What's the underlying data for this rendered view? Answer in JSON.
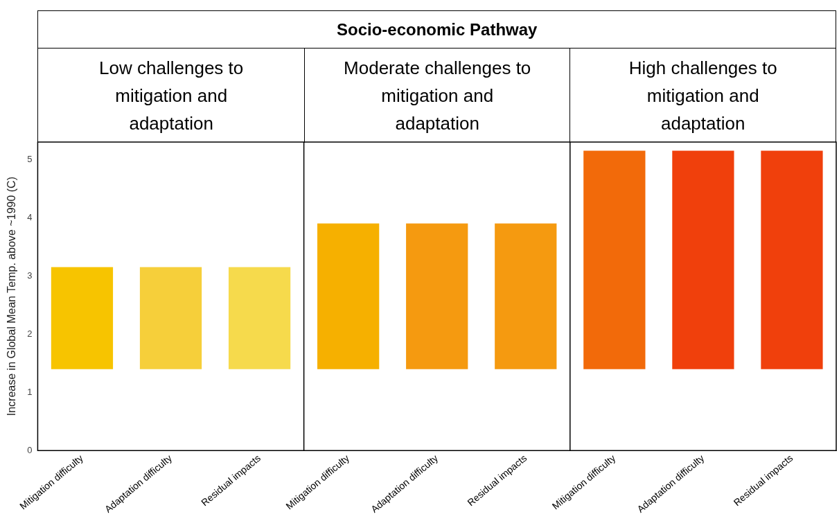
{
  "chart_data": {
    "type": "bar",
    "title": "Socio-economic Pathway",
    "annotations": [
      "Low challenges to mitigation and adaptation",
      "Moderate challenges to mitigation and adaptation",
      "High challenges to mitigation and adaptation"
    ],
    "ylabel": "Increase in Global Mean Temp. above ~1990 (C)",
    "categories": [
      "Mitigation difficulty",
      "Adaptation difficulty",
      "Residual impacts",
      "Mitigation difficulty",
      "Adaptation difficulty",
      "Residual impacts",
      "Mitigation difficulty",
      "Adaptation difficulty",
      "Residual impacts"
    ],
    "base": [
      1.4,
      1.4,
      1.4,
      1.4,
      1.4,
      1.4,
      1.4,
      1.4,
      1.4
    ],
    "values": [
      1.75,
      1.75,
      1.75,
      2.5,
      2.5,
      2.5,
      3.75,
      3.75,
      3.75
    ],
    "colors": [
      "#f7c400",
      "#f6cf3a",
      "#f6da4c",
      "#f6b000",
      "#f59a10",
      "#f59a10",
      "#f26a0a",
      "#f0400c",
      "#f0400c"
    ],
    "ylim": [
      0,
      5.3
    ],
    "yticks": [
      0,
      1,
      2,
      3,
      4,
      5
    ],
    "grid": false,
    "legend": false
  }
}
